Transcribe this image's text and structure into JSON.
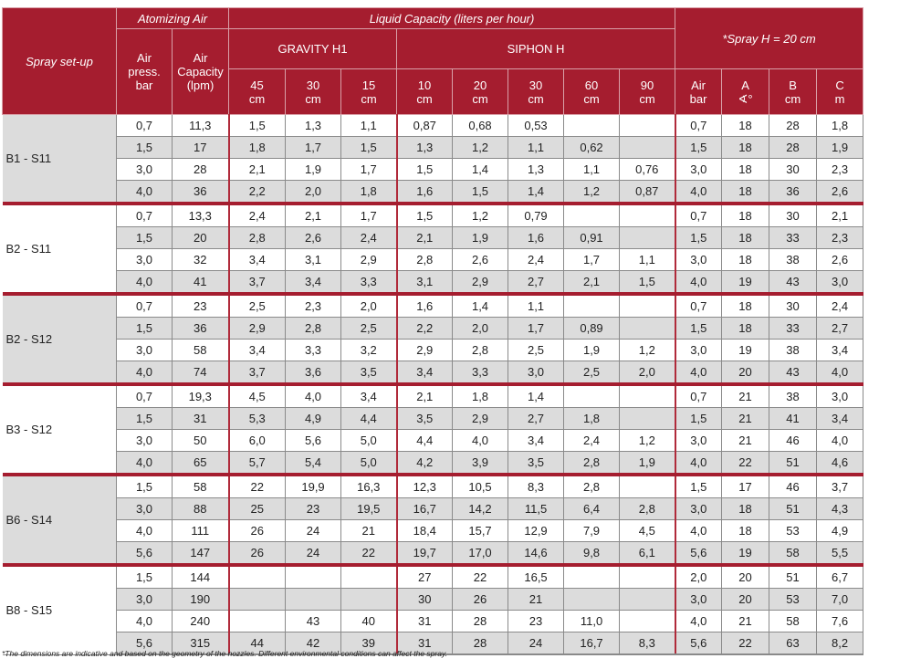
{
  "header": {
    "spray_setup": "Spray set-up",
    "atomizing_air": "Atomizing Air",
    "liquid_capacity": "Liquid Capacity (liters per hour)",
    "spray_h": "*Spray H = 20 cm",
    "gravity": "GRAVITY H1",
    "siphon": "SIPHON H",
    "air_press": [
      "Air",
      "press.",
      "bar"
    ],
    "air_capacity": [
      "Air",
      "Capacity",
      "(lpm)"
    ],
    "gravity_cols": [
      [
        "45",
        "cm"
      ],
      [
        "30",
        "cm"
      ],
      [
        "15",
        "cm"
      ]
    ],
    "siphon_cols": [
      [
        "10",
        "cm"
      ],
      [
        "20",
        "cm"
      ],
      [
        "30",
        "cm"
      ],
      [
        "60",
        "cm"
      ],
      [
        "90",
        "cm"
      ]
    ],
    "spray_cols": [
      [
        "Air",
        "bar"
      ],
      [
        "A",
        "∢°"
      ],
      [
        "B",
        "cm"
      ],
      [
        "C",
        "m"
      ]
    ]
  },
  "colors": {
    "header_bg": "#a51d2f",
    "row_alt": "#dcdcdc",
    "separator": "#a51d2f"
  },
  "groups": [
    {
      "setup": "B1 - S11",
      "rows": [
        [
          "0,7",
          "11,3",
          "1,5",
          "1,3",
          "1,1",
          "0,87",
          "0,68",
          "0,53",
          "",
          "",
          "0,7",
          "18",
          "28",
          "1,8"
        ],
        [
          "1,5",
          "17",
          "1,8",
          "1,7",
          "1,5",
          "1,3",
          "1,2",
          "1,1",
          "0,62",
          "",
          "1,5",
          "18",
          "28",
          "1,9"
        ],
        [
          "3,0",
          "28",
          "2,1",
          "1,9",
          "1,7",
          "1,5",
          "1,4",
          "1,3",
          "1,1",
          "0,76",
          "3,0",
          "18",
          "30",
          "2,3"
        ],
        [
          "4,0",
          "36",
          "2,2",
          "2,0",
          "1,8",
          "1,6",
          "1,5",
          "1,4",
          "1,2",
          "0,87",
          "4,0",
          "18",
          "36",
          "2,6"
        ]
      ]
    },
    {
      "setup": "B2 - S11",
      "rows": [
        [
          "0,7",
          "13,3",
          "2,4",
          "2,1",
          "1,7",
          "1,5",
          "1,2",
          "0,79",
          "",
          "",
          "0,7",
          "18",
          "30",
          "2,1"
        ],
        [
          "1,5",
          "20",
          "2,8",
          "2,6",
          "2,4",
          "2,1",
          "1,9",
          "1,6",
          "0,91",
          "",
          "1,5",
          "18",
          "33",
          "2,3"
        ],
        [
          "3,0",
          "32",
          "3,4",
          "3,1",
          "2,9",
          "2,8",
          "2,6",
          "2,4",
          "1,7",
          "1,1",
          "3,0",
          "18",
          "38",
          "2,6"
        ],
        [
          "4,0",
          "41",
          "3,7",
          "3,4",
          "3,3",
          "3,1",
          "2,9",
          "2,7",
          "2,1",
          "1,5",
          "4,0",
          "19",
          "43",
          "3,0"
        ]
      ]
    },
    {
      "setup": "B2 - S12",
      "rows": [
        [
          "0,7",
          "23",
          "2,5",
          "2,3",
          "2,0",
          "1,6",
          "1,4",
          "1,1",
          "",
          "",
          "0,7",
          "18",
          "30",
          "2,4"
        ],
        [
          "1,5",
          "36",
          "2,9",
          "2,8",
          "2,5",
          "2,2",
          "2,0",
          "1,7",
          "0,89",
          "",
          "1,5",
          "18",
          "33",
          "2,7"
        ],
        [
          "3,0",
          "58",
          "3,4",
          "3,3",
          "3,2",
          "2,9",
          "2,8",
          "2,5",
          "1,9",
          "1,2",
          "3,0",
          "19",
          "38",
          "3,4"
        ],
        [
          "4,0",
          "74",
          "3,7",
          "3,6",
          "3,5",
          "3,4",
          "3,3",
          "3,0",
          "2,5",
          "2,0",
          "4,0",
          "20",
          "43",
          "4,0"
        ]
      ]
    },
    {
      "setup": "B3 - S12",
      "rows": [
        [
          "0,7",
          "19,3",
          "4,5",
          "4,0",
          "3,4",
          "2,1",
          "1,8",
          "1,4",
          "",
          "",
          "0,7",
          "21",
          "38",
          "3,0"
        ],
        [
          "1,5",
          "31",
          "5,3",
          "4,9",
          "4,4",
          "3,5",
          "2,9",
          "2,7",
          "1,8",
          "",
          "1,5",
          "21",
          "41",
          "3,4"
        ],
        [
          "3,0",
          "50",
          "6,0",
          "5,6",
          "5,0",
          "4,4",
          "4,0",
          "3,4",
          "2,4",
          "1,2",
          "3,0",
          "21",
          "46",
          "4,0"
        ],
        [
          "4,0",
          "65",
          "5,7",
          "5,4",
          "5,0",
          "4,2",
          "3,9",
          "3,5",
          "2,8",
          "1,9",
          "4,0",
          "22",
          "51",
          "4,6"
        ]
      ]
    },
    {
      "setup": "B6 - S14",
      "rows": [
        [
          "1,5",
          "58",
          "22",
          "19,9",
          "16,3",
          "12,3",
          "10,5",
          "8,3",
          "2,8",
          "",
          "1,5",
          "17",
          "46",
          "3,7"
        ],
        [
          "3,0",
          "88",
          "25",
          "23",
          "19,5",
          "16,7",
          "14,2",
          "11,5",
          "6,4",
          "2,8",
          "3,0",
          "18",
          "51",
          "4,3"
        ],
        [
          "4,0",
          "111",
          "26",
          "24",
          "21",
          "18,4",
          "15,7",
          "12,9",
          "7,9",
          "4,5",
          "4,0",
          "18",
          "53",
          "4,9"
        ],
        [
          "5,6",
          "147",
          "26",
          "24",
          "22",
          "19,7",
          "17,0",
          "14,6",
          "9,8",
          "6,1",
          "5,6",
          "19",
          "58",
          "5,5"
        ]
      ]
    },
    {
      "setup": "B8 - S15",
      "rows": [
        [
          "1,5",
          "144",
          "",
          "",
          "",
          "27",
          "22",
          "16,5",
          "",
          "",
          "2,0",
          "20",
          "51",
          "6,7"
        ],
        [
          "3,0",
          "190",
          "",
          "",
          "",
          "30",
          "26",
          "21",
          "",
          "",
          "3,0",
          "20",
          "53",
          "7,0"
        ],
        [
          "4,0",
          "240",
          "",
          "43",
          "40",
          "31",
          "28",
          "23",
          "11,0",
          "",
          "4,0",
          "21",
          "58",
          "7,6"
        ],
        [
          "5,6",
          "315",
          "44",
          "42",
          "39",
          "31",
          "28",
          "24",
          "16,7",
          "8,3",
          "5,6",
          "22",
          "63",
          "8,2"
        ]
      ]
    }
  ],
  "footnote": "*The dimensions are indicative and based on the geometry of the nozzles. Different environmental conditions can affect the spray."
}
